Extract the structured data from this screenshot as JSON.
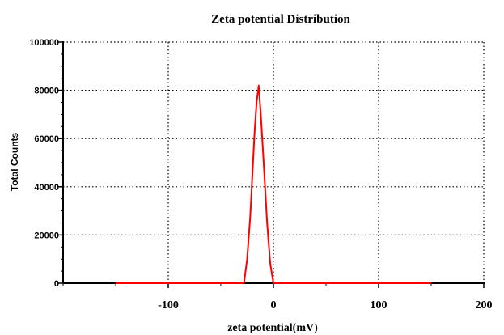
{
  "chart_data": {
    "type": "line",
    "title": "Zeta potential Distribution",
    "xlabel": "zeta potential(mV)",
    "ylabel": "Total Counts",
    "xlim": [
      -200,
      200
    ],
    "ylim": [
      0,
      100000
    ],
    "xticks": [
      -100,
      0,
      100,
      200
    ],
    "xtick_labels": [
      "-100",
      "0",
      "100",
      "200"
    ],
    "yticks": [
      0,
      20000,
      40000,
      60000,
      80000,
      100000
    ],
    "ytick_labels": [
      "0",
      "20000",
      "40000",
      "60000",
      "80000",
      "100000"
    ],
    "grid": true,
    "legend": "none",
    "series": [
      {
        "color": "#ff0000",
        "x": [
          -150,
          -60,
          -28,
          -25,
          -22,
          -20,
          -18,
          -16,
          -14,
          -12,
          -9,
          -6,
          -3,
          0,
          30,
          150
        ],
        "y": [
          0,
          0,
          0,
          10000,
          28000,
          45000,
          62000,
          75000,
          82000,
          70000,
          48000,
          25000,
          8000,
          0,
          0,
          0
        ]
      }
    ]
  }
}
